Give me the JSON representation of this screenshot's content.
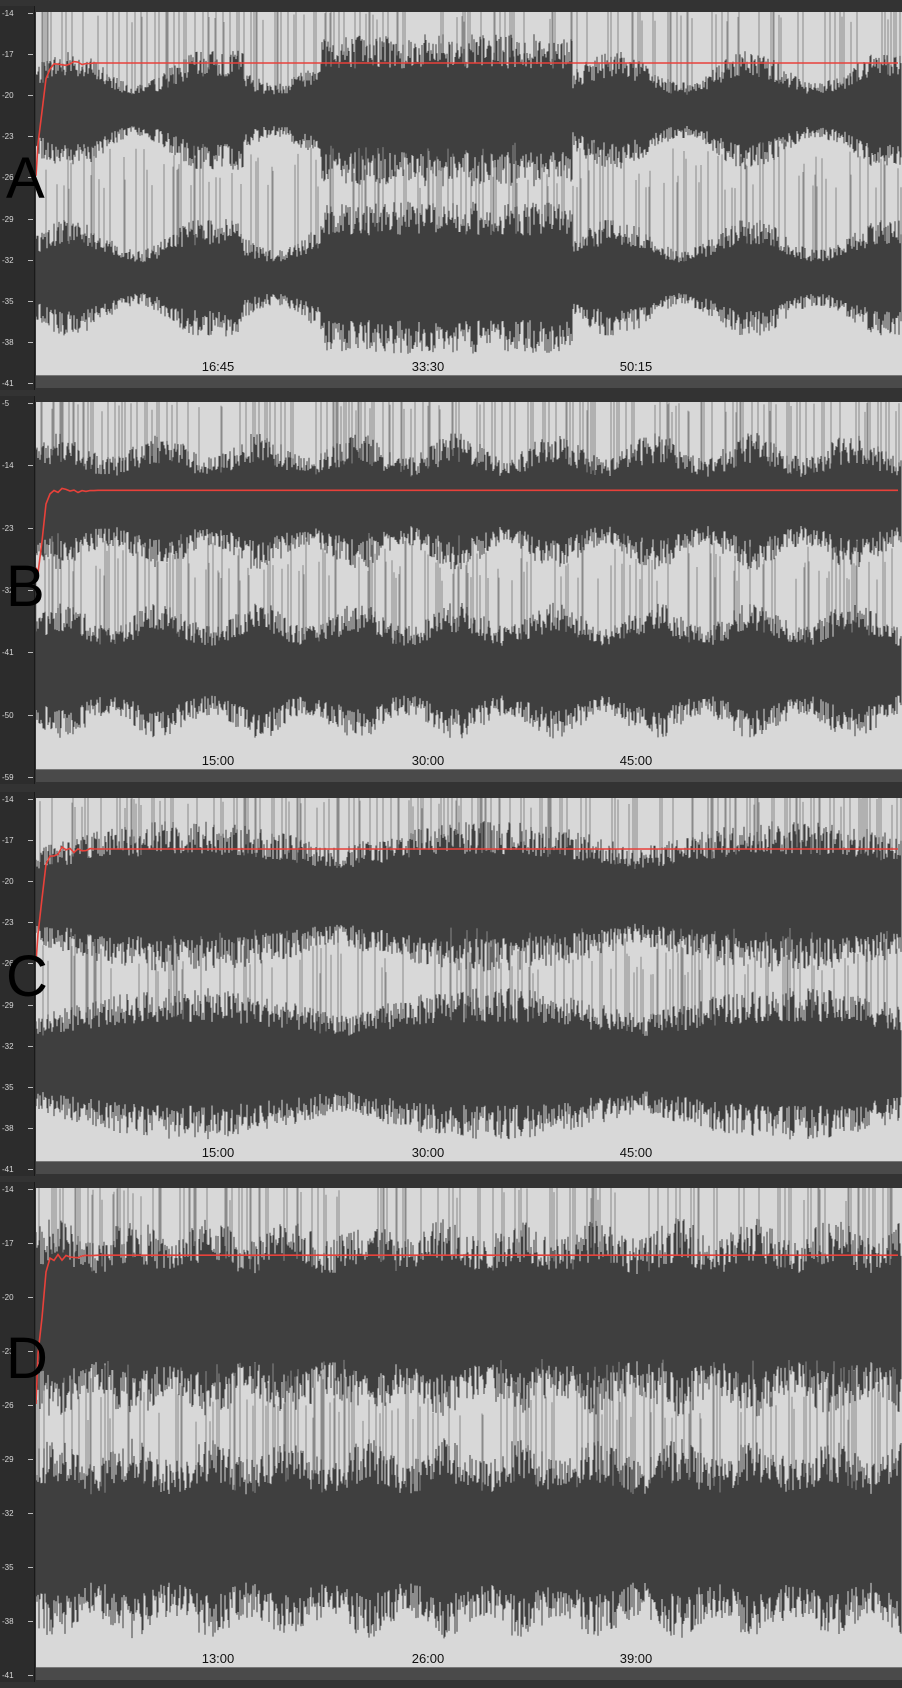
{
  "panels": [
    {
      "letter": "A",
      "yticks": [
        "-14",
        "-17",
        "-20",
        "-23",
        "-26",
        "-29",
        "-32",
        "-35",
        "-38",
        "-41"
      ],
      "times": [
        "16:45",
        "33:30",
        "50:15"
      ],
      "colors": {
        "trace": "#3f3f3f",
        "light": "#8a8a8a",
        "line": "#e8413a",
        "bg": "#d8d8d8"
      }
    },
    {
      "letter": "B",
      "yticks": [
        "-5",
        "-14",
        "-23",
        "-32",
        "-41",
        "-50",
        "-59"
      ],
      "times": [
        "15:00",
        "30:00",
        "45:00"
      ],
      "colors": {
        "trace": "#3f3f3f",
        "light": "#8a8a8a",
        "line": "#e8413a",
        "bg": "#d8d8d8"
      }
    },
    {
      "letter": "C",
      "yticks": [
        "-14",
        "-17",
        "-20",
        "-23",
        "-26",
        "-29",
        "-32",
        "-35",
        "-38",
        "-41"
      ],
      "times": [
        "15:00",
        "30:00",
        "45:00"
      ],
      "colors": {
        "trace": "#3f3f3f",
        "light": "#8a8a8a",
        "line": "#e8413a",
        "bg": "#d8d8d8"
      }
    },
    {
      "letter": "D",
      "yticks": [
        "-14",
        "-17",
        "-20",
        "-23",
        "-26",
        "-29",
        "-32",
        "-35",
        "-38",
        "-41"
      ],
      "times": [
        "13:00",
        "26:00",
        "39:00"
      ],
      "colors": {
        "trace": "#3f3f3f",
        "light": "#8a8a8a",
        "line": "#e8413a",
        "bg": "#d8d8d8"
      }
    }
  ]
}
